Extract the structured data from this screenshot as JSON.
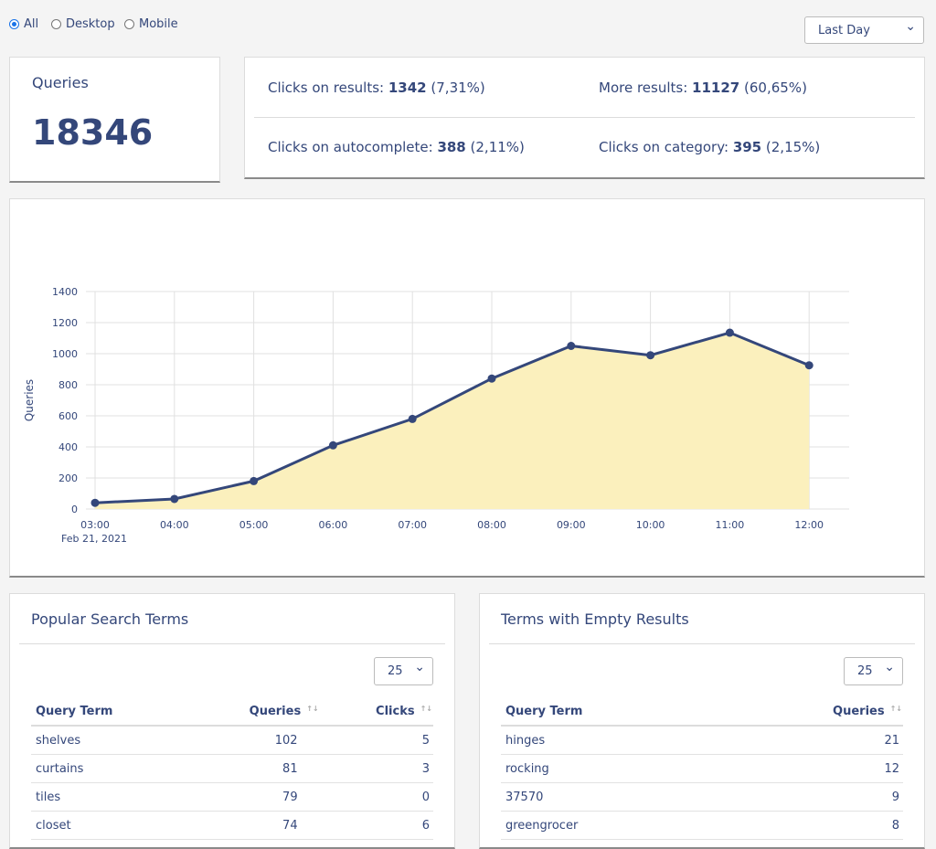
{
  "filters": {
    "options": [
      {
        "label": "All",
        "checked": true
      },
      {
        "label": "Desktop",
        "checked": false
      },
      {
        "label": "Mobile",
        "checked": false
      }
    ]
  },
  "range_select": "Last Day",
  "queries": {
    "label": "Queries",
    "value": 18346
  },
  "stats": [
    {
      "label": "Clicks on results:",
      "value": 1342,
      "percent": "(7,31%)"
    },
    {
      "label": "More results:",
      "value": 11127,
      "percent": "(60,65%)"
    },
    {
      "label": "Clicks on autocomplete:",
      "value": 388,
      "percent": "(2,11%)"
    },
    {
      "label": "Clicks on category:",
      "value": 395,
      "percent": "(2,15%)"
    }
  ],
  "chart_data": {
    "type": "line",
    "categories": [
      "03:00",
      "04:00",
      "05:00",
      "06:00",
      "07:00",
      "08:00",
      "09:00",
      "10:00",
      "11:00",
      "12:00"
    ],
    "x_sublabel": "Feb 21, 2021",
    "y_label": "Queries",
    "values": [
      40,
      65,
      180,
      410,
      580,
      840,
      1050,
      990,
      1135,
      925
    ],
    "color": "#34477a",
    "fill": "#fbf0bd",
    "ylim": [
      0,
      1400
    ],
    "yticks": [
      0,
      200,
      400,
      600,
      800,
      1000,
      1200,
      1400
    ],
    "grid": true
  },
  "tables": [
    {
      "title": "Popular Search Terms",
      "page_size": "25",
      "columns": [
        "Query Term",
        "Queries",
        "Clicks"
      ],
      "rows": [
        [
          "shelves",
          102,
          5
        ],
        [
          "curtains",
          81,
          3
        ],
        [
          "tiles",
          79,
          0
        ],
        [
          "closet",
          74,
          6
        ]
      ]
    },
    {
      "title": "Terms with Empty Results",
      "page_size": "25",
      "columns": [
        "Query Term",
        "Queries"
      ],
      "rows": [
        [
          "hinges",
          21
        ],
        [
          "rocking",
          12
        ],
        [
          "37570",
          9
        ],
        [
          "greengrocer",
          8
        ]
      ]
    }
  ]
}
